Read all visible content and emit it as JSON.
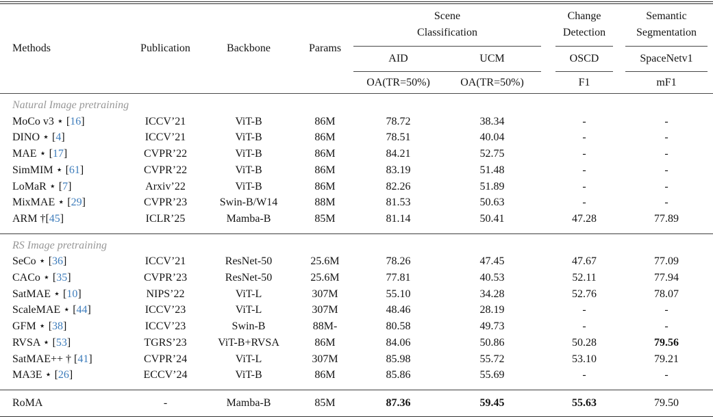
{
  "colors": {
    "citation_blue": "#3d7cbb",
    "section_gray": "#979797",
    "rule_dark": "#333333"
  },
  "table": {
    "header": {
      "methods": "Methods",
      "publication": "Publication",
      "backbone": "Backbone",
      "params": "Params",
      "groups": [
        {
          "label": "Scene Classification",
          "lines": [
            "Scene",
            "Classification"
          ],
          "subs": [
            {
              "dataset": "AID",
              "metric": "OA(TR=50%)"
            },
            {
              "dataset": "UCM",
              "metric": "OA(TR=50%)"
            }
          ]
        },
        {
          "label": "Change Detection",
          "lines": [
            "Change",
            "Detection"
          ],
          "subs": [
            {
              "dataset": "OSCD",
              "metric": "F1"
            }
          ]
        },
        {
          "label": "Semantic Segmentation",
          "lines": [
            "Semantic",
            "Segmentation"
          ],
          "subs": [
            {
              "dataset": "SpaceNetv1",
              "metric": "mF1"
            }
          ]
        }
      ]
    },
    "sections": [
      {
        "title": "Natural Image pretraining",
        "rows": [
          {
            "pre": "MoCo v3 ⋆ ",
            "cite": "16",
            "publication": "ICCV’21",
            "backbone": "ViT-B",
            "params": "86M",
            "values": [
              "78.72",
              "38.34",
              "-",
              "-"
            ],
            "bold": [
              false,
              false,
              false,
              false
            ]
          },
          {
            "pre": "DINO ⋆ ",
            "cite": "4",
            "publication": "ICCV’21",
            "backbone": "ViT-B",
            "params": "86M",
            "values": [
              "78.51",
              "40.04",
              "-",
              "-"
            ],
            "bold": [
              false,
              false,
              false,
              false
            ]
          },
          {
            "pre": "MAE ⋆ ",
            "cite": "17",
            "publication": "CVPR’22",
            "backbone": "ViT-B",
            "params": "86M",
            "values": [
              "84.21",
              "52.75",
              "-",
              "-"
            ],
            "bold": [
              false,
              false,
              false,
              false
            ]
          },
          {
            "pre": "SimMIM ⋆ ",
            "cite": "61",
            "publication": "CVPR’22",
            "backbone": "ViT-B",
            "params": "86M",
            "values": [
              "83.19",
              "51.48",
              "-",
              "-"
            ],
            "bold": [
              false,
              false,
              false,
              false
            ]
          },
          {
            "pre": "LoMaR ⋆ ",
            "cite": "7",
            "publication": "Arxiv’22",
            "backbone": "ViT-B",
            "params": "86M",
            "values": [
              "82.26",
              "51.89",
              "-",
              "-"
            ],
            "bold": [
              false,
              false,
              false,
              false
            ]
          },
          {
            "pre": "MixMAE ⋆ ",
            "cite": "29",
            "publication": "CVPR’23",
            "backbone": "Swin-B/W14",
            "params": "88M",
            "values": [
              "81.53",
              "50.63",
              "-",
              "-"
            ],
            "bold": [
              false,
              false,
              false,
              false
            ]
          },
          {
            "pre": "ARM †",
            "cite": "45",
            "publication": "ICLR’25",
            "backbone": "Mamba-B",
            "params": "85M",
            "values": [
              "81.14",
              "50.41",
              "47.28",
              "77.89"
            ],
            "bold": [
              false,
              false,
              false,
              false
            ]
          }
        ]
      },
      {
        "title": "RS Image pretraining",
        "rows": [
          {
            "pre": "SeCo ⋆ ",
            "cite": "36",
            "publication": "ICCV’21",
            "backbone": "ResNet-50",
            "params": "25.6M",
            "values": [
              "78.26",
              "47.45",
              "47.67",
              "77.09"
            ],
            "bold": [
              false,
              false,
              false,
              false
            ]
          },
          {
            "pre": "CACo ⋆ ",
            "cite": "35",
            "publication": "CVPR’23",
            "backbone": "ResNet-50",
            "params": "25.6M",
            "values": [
              "77.81",
              "40.53",
              "52.11",
              "77.94"
            ],
            "bold": [
              false,
              false,
              false,
              false
            ]
          },
          {
            "pre": "SatMAE ⋆ ",
            "cite": "10",
            "publication": "NIPS’22",
            "backbone": "ViT-L",
            "params": "307M",
            "values": [
              "55.10",
              "34.28",
              "52.76",
              "78.07"
            ],
            "bold": [
              false,
              false,
              false,
              false
            ]
          },
          {
            "pre": "ScaleMAE ⋆ ",
            "cite": "44",
            "publication": "ICCV’23",
            "backbone": "ViT-L",
            "params": "307M",
            "values": [
              "48.46",
              "28.19",
              "-",
              "-"
            ],
            "bold": [
              false,
              false,
              false,
              false
            ]
          },
          {
            "pre": "GFM ⋆ ",
            "cite": "38",
            "publication": "ICCV’23",
            "backbone": "Swin-B",
            "params": "88M-",
            "values": [
              "80.58",
              "49.73",
              "-",
              "-"
            ],
            "bold": [
              false,
              false,
              false,
              false
            ]
          },
          {
            "pre": "RVSA ⋆ ",
            "cite": "53",
            "publication": "TGRS’23",
            "backbone": "ViT-B+RVSA",
            "params": "86M",
            "values": [
              "84.06",
              "50.86",
              "50.28",
              "79.56"
            ],
            "bold": [
              false,
              false,
              false,
              true
            ]
          },
          {
            "pre": "SatMAE++ † ",
            "cite": "41",
            "publication": "CVPR’24",
            "backbone": "ViT-L",
            "params": "307M",
            "values": [
              "85.98",
              "55.72",
              "53.10",
              "79.21"
            ],
            "bold": [
              false,
              false,
              false,
              false
            ]
          },
          {
            "pre": "MA3E ⋆ ",
            "cite": "26",
            "publication": "ECCV’24",
            "backbone": "ViT-B",
            "params": "86M",
            "values": [
              "85.86",
              "55.69",
              "-",
              "-"
            ],
            "bold": [
              false,
              false,
              false,
              false
            ]
          }
        ]
      },
      {
        "title": null,
        "rows": [
          {
            "pre": "RoMA",
            "cite": null,
            "publication": "-",
            "backbone": "Mamba-B",
            "params": "85M",
            "values": [
              "87.36",
              "59.45",
              "55.63",
              "79.50"
            ],
            "bold": [
              true,
              true,
              true,
              false
            ]
          }
        ]
      }
    ]
  }
}
